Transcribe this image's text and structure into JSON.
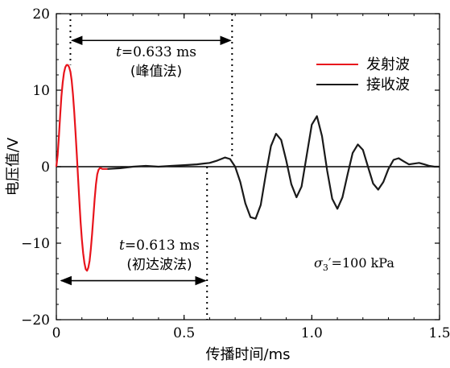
{
  "chart_data": {
    "type": "line",
    "xlabel": "传播时间/ms",
    "ylabel": "电压值/V",
    "xlim": [
      0,
      1.5
    ],
    "ylim": [
      -20,
      20
    ],
    "xticks": [
      "0",
      "0.5",
      "1.0",
      "1.5"
    ],
    "xtick_values": [
      0,
      0.5,
      1.0,
      1.5
    ],
    "yticks": [
      "−20",
      "−10",
      "0",
      "10",
      "20"
    ],
    "ytick_values": [
      -20,
      -10,
      0,
      10,
      20
    ],
    "grid": false,
    "legend_position": "upper-right",
    "series": [
      {
        "name": "发射波",
        "color": "#e8141c",
        "x": [
          0.0,
          0.005,
          0.01,
          0.015,
          0.02,
          0.025,
          0.03,
          0.035,
          0.04,
          0.045,
          0.05,
          0.055,
          0.06,
          0.065,
          0.07,
          0.075,
          0.08,
          0.085,
          0.09,
          0.095,
          0.1,
          0.105,
          0.11,
          0.115,
          0.12,
          0.125,
          0.13,
          0.135,
          0.14,
          0.145,
          0.15,
          0.155,
          0.16,
          0.165,
          0.17,
          0.175,
          0.18,
          0.185,
          0.19,
          0.195,
          0.2
        ],
        "y": [
          0.0,
          1.5,
          4.0,
          6.8,
          9.2,
          11.0,
          12.3,
          13.0,
          13.3,
          13.3,
          13.0,
          12.4,
          11.3,
          9.5,
          7.2,
          4.5,
          1.6,
          -1.5,
          -4.5,
          -7.2,
          -9.5,
          -11.3,
          -12.6,
          -13.4,
          -13.6,
          -13.2,
          -12.3,
          -10.8,
          -8.8,
          -6.5,
          -4.2,
          -2.3,
          -1.0,
          -0.4,
          -0.2,
          -0.2,
          -0.3,
          -0.3,
          -0.3,
          -0.3,
          -0.3
        ]
      },
      {
        "name": "接收波",
        "color": "#1a1a1a",
        "x": [
          0.2,
          0.25,
          0.3,
          0.35,
          0.4,
          0.45,
          0.5,
          0.55,
          0.6,
          0.63,
          0.66,
          0.68,
          0.7,
          0.72,
          0.74,
          0.76,
          0.78,
          0.8,
          0.82,
          0.84,
          0.86,
          0.88,
          0.9,
          0.92,
          0.94,
          0.96,
          0.98,
          1.0,
          1.02,
          1.04,
          1.06,
          1.08,
          1.1,
          1.12,
          1.14,
          1.16,
          1.18,
          1.2,
          1.22,
          1.24,
          1.26,
          1.28,
          1.3,
          1.32,
          1.34,
          1.36,
          1.38,
          1.4,
          1.42,
          1.44,
          1.46,
          1.48,
          1.5
        ],
        "y": [
          -0.3,
          -0.2,
          0.0,
          0.1,
          0.0,
          0.1,
          0.2,
          0.3,
          0.5,
          0.8,
          1.2,
          1.0,
          0.0,
          -2.0,
          -4.8,
          -6.6,
          -6.8,
          -5.0,
          -1.0,
          2.7,
          4.3,
          3.5,
          0.8,
          -2.3,
          -4.0,
          -2.6,
          1.5,
          5.5,
          6.6,
          4.0,
          -0.5,
          -4.2,
          -5.5,
          -4.0,
          -1.0,
          1.8,
          2.9,
          2.2,
          0.0,
          -2.2,
          -3.0,
          -2.0,
          -0.3,
          0.9,
          1.1,
          0.7,
          0.3,
          0.4,
          0.5,
          0.3,
          0.1,
          0.0,
          0.0
        ]
      }
    ],
    "annotations": [
      {
        "text_var": "t",
        "text_rest": "=0.633 ms",
        "text_method": "(峰值法)",
        "x_start": 0.055,
        "x_end": 0.688,
        "arrow_y": 16.5
      },
      {
        "text_var": "t",
        "text_rest": "=0.613 ms",
        "text_method": "(初达波法)",
        "x_start": 0.0,
        "x_end": 0.59,
        "arrow_y": -14.9
      },
      {
        "text_sigma": "σ",
        "text_sub": "3",
        "text_rest": "′=100 kPa"
      }
    ]
  }
}
